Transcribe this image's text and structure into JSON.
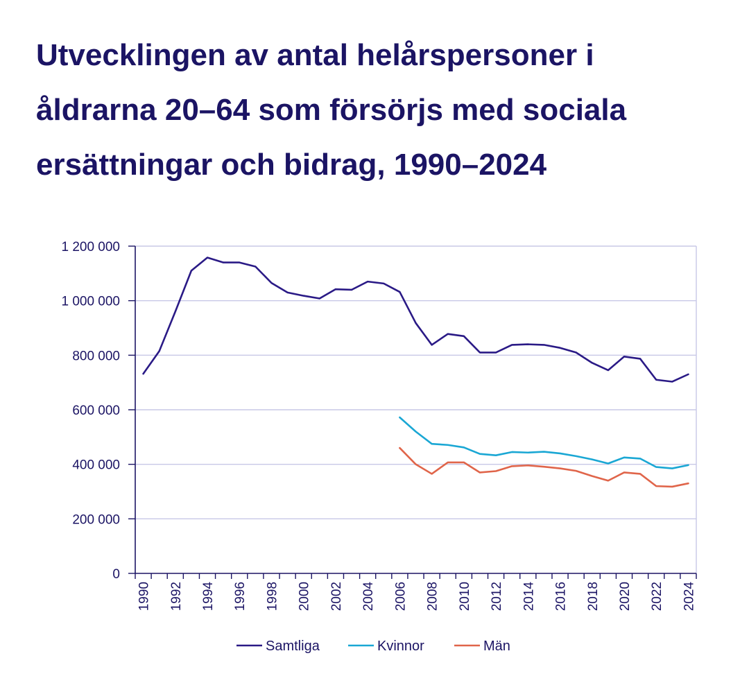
{
  "title_lines": [
    "Utvecklingen av antal helårspersoner i",
    "åldrarna 20–64 som försörjs med sociala",
    "ersättningar och bidrag, 1990–2024"
  ],
  "colors": {
    "title": "#1b1464",
    "axis": "#1b1464",
    "grid": "#c8c8e6",
    "samtliga": "#2a1a86",
    "kvinnor": "#1aa7d4",
    "man": "#e0654a"
  },
  "chart_data": {
    "type": "line",
    "title": "Utvecklingen av antal helårspersoner i åldrarna 20–64 som försörjs med sociala ersättningar och bidrag, 1990–2024",
    "xlabel": "",
    "ylabel": "",
    "ylim": [
      0,
      1200000
    ],
    "yticks": [
      0,
      200000,
      400000,
      600000,
      800000,
      1000000,
      1200000
    ],
    "ytick_labels": [
      "0",
      "200 000",
      "400 000",
      "600 000",
      "800 000",
      "1 000 000",
      "1 200 000"
    ],
    "x": [
      1990,
      1991,
      1992,
      1993,
      1994,
      1995,
      1996,
      1997,
      1998,
      1999,
      2000,
      2001,
      2002,
      2003,
      2004,
      2005,
      2006,
      2007,
      2008,
      2009,
      2010,
      2011,
      2012,
      2013,
      2014,
      2015,
      2016,
      2017,
      2018,
      2019,
      2020,
      2021,
      2022,
      2023,
      2024
    ],
    "xtick_labels": [
      "1990",
      "1992",
      "1994",
      "1996",
      "1998",
      "2000",
      "2002",
      "2004",
      "2006",
      "2008",
      "2010",
      "2012",
      "2014",
      "2016",
      "2018",
      "2020",
      "2022",
      "2024"
    ],
    "legend_position": "bottom",
    "grid": true,
    "series": [
      {
        "name": "Samtliga",
        "color": "#2a1a86",
        "values": [
          732000,
          815000,
          960000,
          1110000,
          1158000,
          1140000,
          1140000,
          1125000,
          1065000,
          1030000,
          1018000,
          1008000,
          1042000,
          1040000,
          1070000,
          1063000,
          1032000,
          918000,
          838000,
          878000,
          870000,
          810000,
          810000,
          838000,
          840000,
          838000,
          827000,
          810000,
          772000,
          745000,
          795000,
          787000,
          710000,
          703000,
          730000
        ]
      },
      {
        "name": "Kvinnor",
        "color": "#1aa7d4",
        "values": [
          null,
          null,
          null,
          null,
          null,
          null,
          null,
          null,
          null,
          null,
          null,
          null,
          null,
          null,
          null,
          null,
          572000,
          520000,
          475000,
          471000,
          462000,
          438000,
          433000,
          445000,
          443000,
          446000,
          440000,
          430000,
          418000,
          403000,
          425000,
          421000,
          390000,
          385000,
          397000
        ]
      },
      {
        "name": "Män",
        "color": "#e0654a",
        "values": [
          null,
          null,
          null,
          null,
          null,
          null,
          null,
          null,
          null,
          null,
          null,
          null,
          null,
          null,
          null,
          null,
          460000,
          400000,
          365000,
          407000,
          407000,
          370000,
          375000,
          393000,
          396000,
          391000,
          385000,
          376000,
          357000,
          340000,
          370000,
          365000,
          320000,
          318000,
          330000
        ]
      }
    ]
  }
}
